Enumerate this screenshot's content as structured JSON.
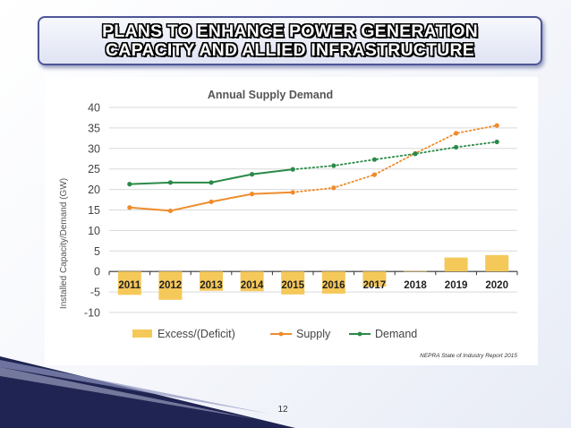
{
  "slide": {
    "title_line1": "PLANS TO ENHANCE POWER GENERATION",
    "title_line2": "CAPACITY AND ALLIED INFRASTRUCTURE",
    "page_number": "12",
    "source": "NEPRA State of Industry Report 2015"
  },
  "colors": {
    "excess": "#f5c85a",
    "supply": "#ee8c2c",
    "demand": "#2a8a48",
    "title_border": "#4d5596"
  },
  "chart_data": {
    "type": "bar",
    "title": "Annual Supply Demand",
    "ylabel": "Installed Capacity/Demand (GW)",
    "xlabel": "",
    "ylim": [
      -10,
      40
    ],
    "yticks": [
      40,
      35,
      30,
      25,
      20,
      15,
      10,
      5,
      0,
      -5,
      -10
    ],
    "categories": [
      "2011",
      "2012",
      "2013",
      "2014",
      "2015",
      "2016",
      "2017",
      "2018",
      "2019",
      "2020"
    ],
    "grid": true,
    "legend_position": "bottom",
    "series": [
      {
        "name": "Excess/(Deficit)",
        "type": "bar",
        "values": [
          -5.7,
          -6.9,
          -4.7,
          -4.8,
          -5.6,
          -5.4,
          -3.7,
          0.1,
          3.4,
          4.0
        ]
      },
      {
        "name": "Supply",
        "type": "line",
        "values": [
          15.6,
          14.8,
          17.0,
          18.9,
          19.3,
          20.4,
          23.6,
          28.8,
          33.7,
          35.6
        ],
        "dotted_from": "2015"
      },
      {
        "name": "Demand",
        "type": "line",
        "values": [
          21.3,
          21.7,
          21.7,
          23.7,
          24.9,
          25.8,
          27.3,
          28.7,
          30.3,
          31.6
        ],
        "dotted_from": "2015"
      }
    ]
  }
}
